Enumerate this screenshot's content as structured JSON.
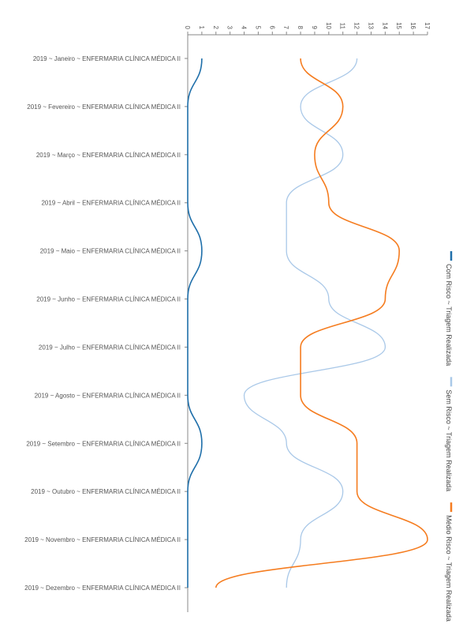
{
  "chart_data": {
    "type": "line",
    "orientation": "horizontal",
    "categories": [
      "2019 ~ Janeiro ~ ENFERMARIA CLÍNICA MÉDICA II",
      "2019 ~ Fevereiro ~ ENFERMARIA CLÍNICA MÉDICA II",
      "2019 ~ Março ~ ENFERMARIA CLÍNICA MÉDICA II",
      "2019 ~ Abril ~ ENFERMARIA CLÍNICA MÉDICA II",
      "2019 ~ Maio ~ ENFERMARIA CLÍNICA MÉDICA II",
      "2019 ~ Junho ~ ENFERMARIA CLÍNICA MÉDICA II",
      "2019 ~ Julho ~ ENFERMARIA CLÍNICA MÉDICA II",
      "2019 ~ Agosto ~ ENFERMARIA CLÍNICA MÉDICA II",
      "2019 ~ Setembro ~ ENFERMARIA CLÍNICA MÉDICA II",
      "2019 ~ Outubro ~ ENFERMARIA CLÍNICA MÉDICA II",
      "2019 ~ Novembro ~ ENFERMARIA CLÍNICA MÉDICA II",
      "2019 ~ Dezembro ~ ENFERMARIA CLÍNICA MÉDICA II"
    ],
    "series": [
      {
        "name": "Com Risco ~ Triagem Realizada",
        "color": "#1f6faa",
        "values": [
          1,
          0,
          0,
          0,
          1,
          0,
          0,
          0,
          1,
          0,
          0,
          0
        ]
      },
      {
        "name": "Sem Risco ~ Triagem Realizada",
        "color": "#a9c8e8",
        "values": [
          12,
          8,
          11,
          7,
          7,
          10,
          14,
          4,
          7,
          11,
          8,
          7
        ]
      },
      {
        "name": "Médio Risco ~ Triagem Realizada",
        "color": "#f57c1f",
        "values": [
          8,
          11,
          9,
          10,
          15,
          14,
          8,
          8,
          12,
          12,
          17,
          2
        ]
      }
    ],
    "xlim": [
      0,
      17
    ],
    "ticks": [
      0,
      1,
      2,
      3,
      4,
      5,
      6,
      7,
      8,
      9,
      10,
      11,
      12,
      13,
      14,
      15,
      16,
      17
    ],
    "legend_position": "right",
    "title": "",
    "xlabel": "",
    "ylabel": ""
  }
}
